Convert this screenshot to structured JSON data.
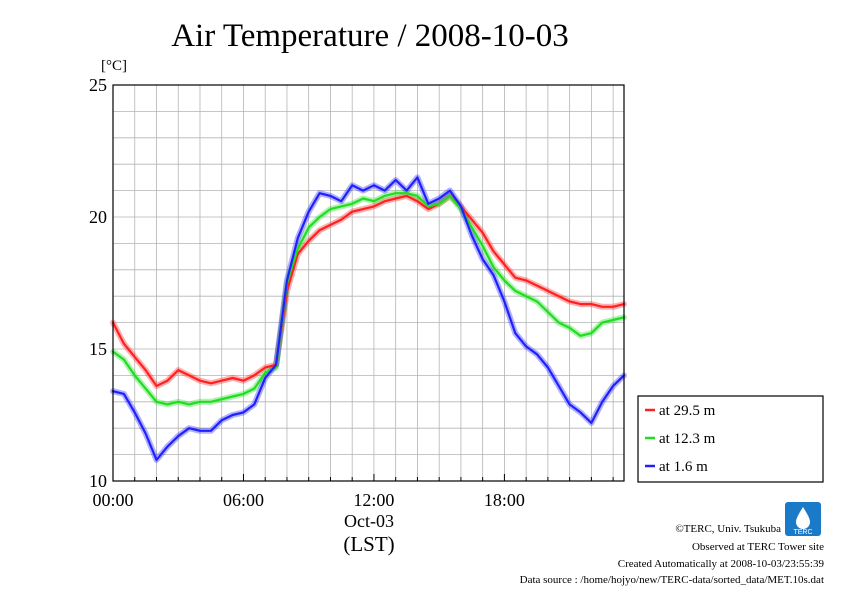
{
  "chart_data": {
    "type": "line",
    "title": "Air Temperature / 2008-10-03",
    "ylabel": "[°C]",
    "ylim": [
      10,
      25
    ],
    "xlim": [
      0,
      23.5
    ],
    "y_ticks": [
      "10",
      "15",
      "20",
      "25"
    ],
    "x_ticks": [
      {
        "x": 0,
        "label": "00:00"
      },
      {
        "x": 6,
        "label": "06:00"
      },
      {
        "x": 12,
        "label": "12:00"
      },
      {
        "x": 18,
        "label": "18:00"
      }
    ],
    "date_label": "Oct-03",
    "time_zone_label": "(LST)",
    "grid": true,
    "legend_position": "right",
    "series": [
      {
        "name": "at 29.5 m",
        "color": "#ff2020",
        "x": [
          0,
          0.5,
          1,
          1.5,
          2,
          2.5,
          3,
          3.5,
          4,
          4.5,
          5,
          5.5,
          6,
          6.5,
          7,
          7.5,
          8,
          8.5,
          9,
          9.5,
          10,
          10.5,
          11,
          11.5,
          12,
          12.5,
          13,
          13.5,
          14,
          14.5,
          15,
          15.5,
          16,
          16.5,
          17,
          17.5,
          18,
          18.5,
          19,
          19.5,
          20,
          20.5,
          21,
          21.5,
          22,
          22.5,
          23,
          23.5
        ],
        "values": [
          16.0,
          15.2,
          14.7,
          14.2,
          13.6,
          13.8,
          14.2,
          14.0,
          13.8,
          13.7,
          13.8,
          13.9,
          13.8,
          14.0,
          14.3,
          14.4,
          17.2,
          18.6,
          19.1,
          19.5,
          19.7,
          19.9,
          20.2,
          20.3,
          20.4,
          20.6,
          20.7,
          20.8,
          20.6,
          20.3,
          20.5,
          20.8,
          20.4,
          19.9,
          19.4,
          18.7,
          18.2,
          17.7,
          17.6,
          17.4,
          17.2,
          17.0,
          16.8,
          16.7,
          16.7,
          16.6,
          16.6,
          16.7
        ]
      },
      {
        "name": "at 12.3 m",
        "color": "#20dd20",
        "x": [
          0,
          0.5,
          1,
          1.5,
          2,
          2.5,
          3,
          3.5,
          4,
          4.5,
          5,
          5.5,
          6,
          6.5,
          7,
          7.5,
          8,
          8.5,
          9,
          9.5,
          10,
          10.5,
          11,
          11.5,
          12,
          12.5,
          13,
          13.5,
          14,
          14.5,
          15,
          15.5,
          16,
          16.5,
          17,
          17.5,
          18,
          18.5,
          19,
          19.5,
          20,
          20.5,
          21,
          21.5,
          22,
          22.5,
          23,
          23.5
        ],
        "values": [
          14.9,
          14.6,
          14.0,
          13.5,
          13.0,
          12.9,
          13.0,
          12.9,
          13.0,
          13.0,
          13.1,
          13.2,
          13.3,
          13.5,
          14.1,
          14.3,
          17.5,
          18.8,
          19.6,
          20.0,
          20.3,
          20.4,
          20.5,
          20.7,
          20.6,
          20.8,
          20.9,
          20.9,
          20.8,
          20.4,
          20.5,
          20.8,
          20.3,
          19.6,
          18.9,
          18.1,
          17.6,
          17.2,
          17.0,
          16.8,
          16.4,
          16.0,
          15.8,
          15.5,
          15.6,
          16.0,
          16.1,
          16.2
        ]
      },
      {
        "name": "at 1.6 m",
        "color": "#2020ff",
        "x": [
          0,
          0.5,
          1,
          1.5,
          2,
          2.5,
          3,
          3.5,
          4,
          4.5,
          5,
          5.5,
          6,
          6.5,
          7,
          7.5,
          8,
          8.5,
          9,
          9.5,
          10,
          10.5,
          11,
          11.5,
          12,
          12.5,
          13,
          13.5,
          14,
          14.5,
          15,
          15.5,
          16,
          16.5,
          17,
          17.5,
          18,
          18.5,
          19,
          19.5,
          20,
          20.5,
          21,
          21.5,
          22,
          22.5,
          23,
          23.5
        ],
        "values": [
          13.4,
          13.3,
          12.6,
          11.8,
          10.8,
          11.3,
          11.7,
          12.0,
          11.9,
          11.9,
          12.3,
          12.5,
          12.6,
          12.9,
          13.9,
          14.4,
          17.6,
          19.2,
          20.2,
          20.9,
          20.8,
          20.6,
          21.2,
          21.0,
          21.2,
          21.0,
          21.4,
          21.0,
          21.5,
          20.5,
          20.7,
          21.0,
          20.4,
          19.3,
          18.4,
          17.8,
          16.8,
          15.6,
          15.1,
          14.8,
          14.3,
          13.6,
          12.9,
          12.6,
          12.2,
          13.0,
          13.6,
          14.0
        ]
      }
    ]
  },
  "footer": {
    "copyright": "©TERC, Univ. Tsukuba",
    "observed": "Observed at TERC Tower site",
    "created": "Created Automatically at 2008-10-03/23:55:39",
    "source": "Data source : /home/hojyo/new/TERC-data/sorted_data/MET.10s.dat"
  },
  "logo": {
    "text": "TERC",
    "color": "#1a7ac8"
  }
}
